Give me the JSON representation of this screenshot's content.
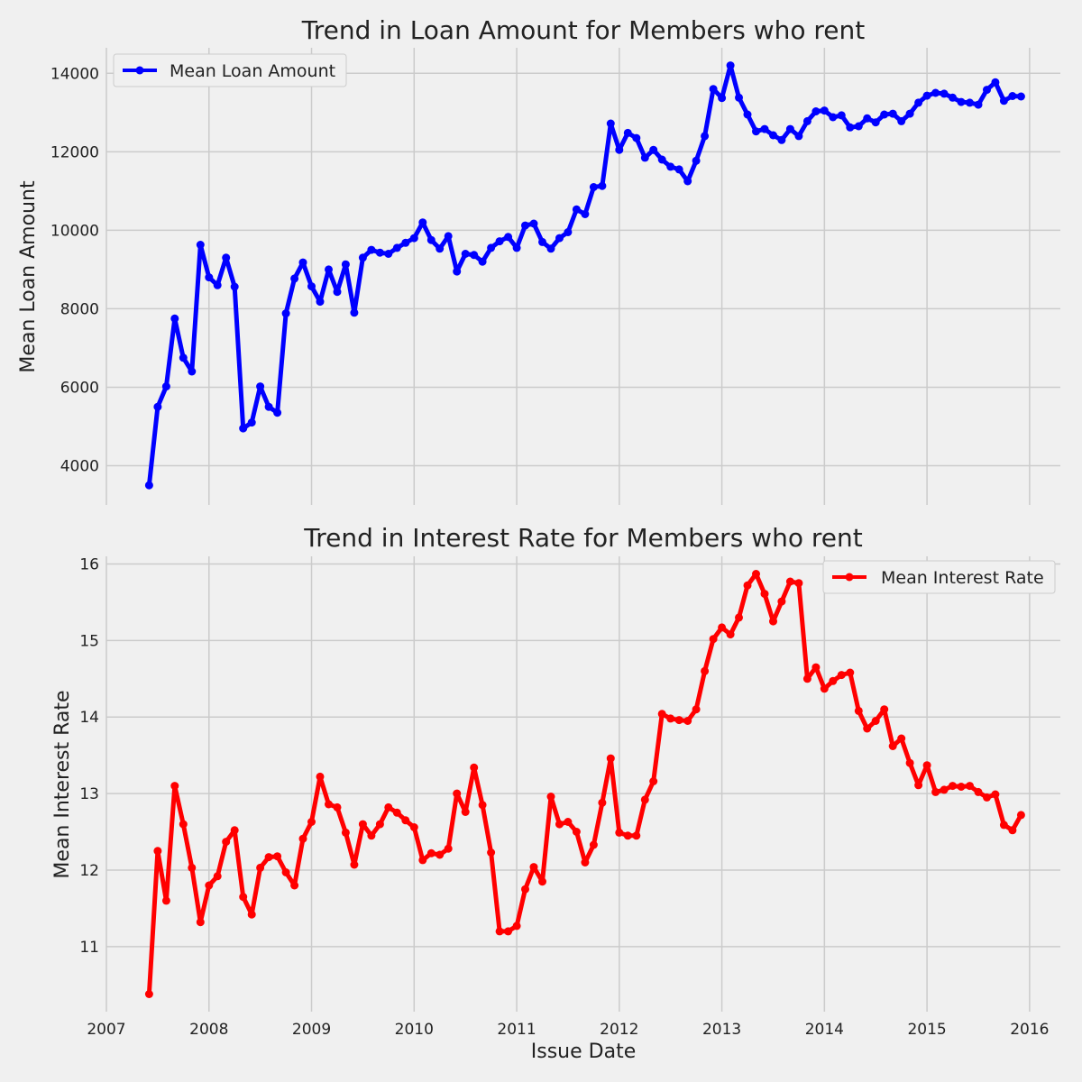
{
  "chart_data": [
    {
      "type": "line",
      "title": "Trend in Loan Amount for Members who rent",
      "xlabel": "",
      "ylabel": "Mean Loan Amount",
      "series_name": "Mean Loan Amount",
      "color": "#0000ff",
      "x_start": "2007-06",
      "xlim": [
        2007.0,
        2016.3
      ],
      "ylim": [
        3000,
        14650
      ],
      "xticks": [
        2007,
        2008,
        2009,
        2010,
        2011,
        2012,
        2013,
        2014,
        2015,
        2016
      ],
      "xtick_labels_visible": false,
      "yticks": [
        4000,
        6000,
        8000,
        10000,
        12000,
        14000
      ],
      "legend": "top-left",
      "values": [
        3500,
        5500,
        6020,
        7750,
        6750,
        6400,
        9630,
        8800,
        8600,
        9300,
        8560,
        4950,
        5100,
        6020,
        5500,
        5350,
        7880,
        8770,
        9180,
        8570,
        8180,
        9000,
        8430,
        9130,
        7900,
        9300,
        9500,
        9430,
        9400,
        9550,
        9680,
        9800,
        10200,
        9750,
        9530,
        9850,
        8950,
        9400,
        9370,
        9200,
        9550,
        9720,
        9830,
        9550,
        10120,
        10170,
        9700,
        9530,
        9800,
        9950,
        10530,
        10410,
        11100,
        11130,
        12720,
        12050,
        12480,
        12350,
        11850,
        12050,
        11800,
        11620,
        11550,
        11250,
        11770,
        12400,
        13600,
        13370,
        14200,
        13380,
        12950,
        12520,
        12580,
        12420,
        12300,
        12580,
        12400,
        12780,
        13030,
        13050,
        12880,
        12930,
        12620,
        12650,
        12850,
        12750,
        12950,
        12970,
        12780,
        12970,
        13250,
        13430,
        13500,
        13480,
        13380,
        13270,
        13250,
        13200,
        13580,
        13770,
        13300,
        13420,
        13410
      ]
    },
    {
      "type": "line",
      "title": "Trend in Interest Rate for Members who rent",
      "xlabel": "Issue Date",
      "ylabel": "Mean Interest Rate",
      "series_name": "Mean Interest Rate",
      "color": "#ff0000",
      "x_start": "2007-06",
      "xlim": [
        2007.0,
        2016.3
      ],
      "ylim": [
        10.15,
        16.1
      ],
      "xticks": [
        2007,
        2008,
        2009,
        2010,
        2011,
        2012,
        2013,
        2014,
        2015,
        2016
      ],
      "xtick_labels_visible": true,
      "yticks": [
        11,
        12,
        13,
        14,
        15,
        16
      ],
      "legend": "top-right",
      "values": [
        10.38,
        12.25,
        11.6,
        13.1,
        12.6,
        12.03,
        11.32,
        11.8,
        11.92,
        12.37,
        12.52,
        11.65,
        11.42,
        12.03,
        12.17,
        12.18,
        11.97,
        11.8,
        12.41,
        12.63,
        13.22,
        12.86,
        12.82,
        12.49,
        12.07,
        12.6,
        12.45,
        12.6,
        12.82,
        12.75,
        12.65,
        12.56,
        12.13,
        12.22,
        12.2,
        12.28,
        13.0,
        12.76,
        13.34,
        12.85,
        12.23,
        11.2,
        11.2,
        11.27,
        11.75,
        12.04,
        11.85,
        12.96,
        12.6,
        12.63,
        12.5,
        12.1,
        12.33,
        12.88,
        13.46,
        12.49,
        12.45,
        12.45,
        12.92,
        13.16,
        14.04,
        13.98,
        13.96,
        13.95,
        14.1,
        14.6,
        15.02,
        15.17,
        15.08,
        15.3,
        15.72,
        15.87,
        15.61,
        15.25,
        15.51,
        15.77,
        15.75,
        14.5,
        14.65,
        14.37,
        14.47,
        14.55,
        14.58,
        14.08,
        13.85,
        13.95,
        14.1,
        13.62,
        13.72,
        13.4,
        13.11,
        13.37,
        13.02,
        13.05,
        13.1,
        13.09,
        13.1,
        13.02,
        12.95,
        12.99,
        12.59,
        12.52,
        12.72
      ]
    }
  ]
}
